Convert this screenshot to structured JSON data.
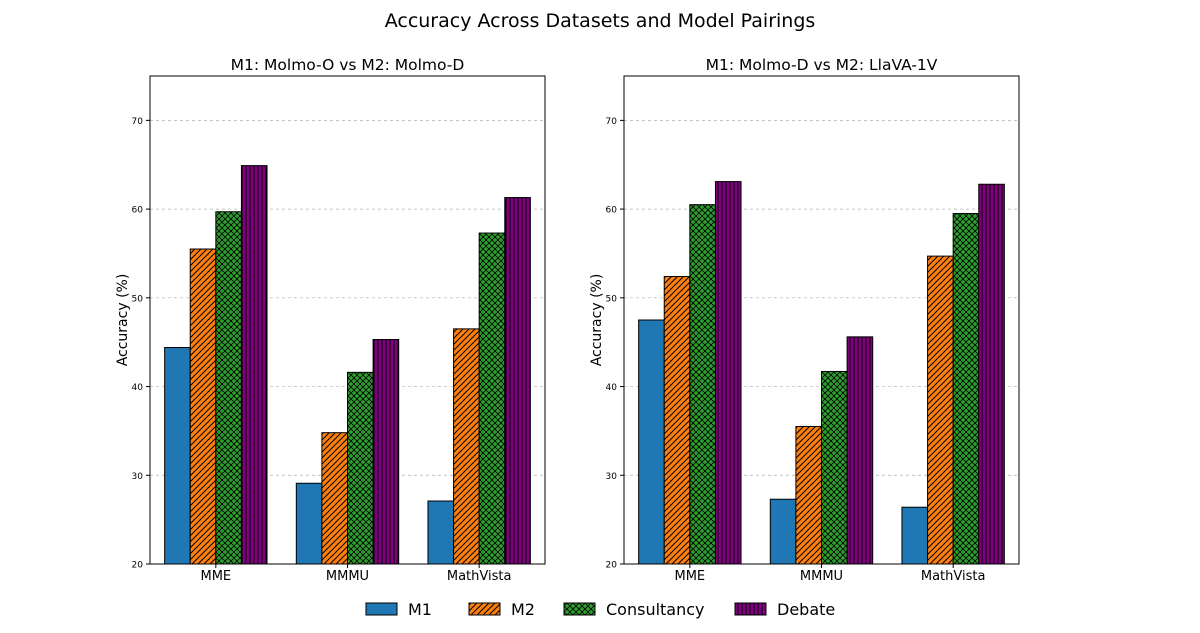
{
  "figure_title": "Accuracy Across Datasets and Model Pairings",
  "colors": {
    "M1": "#1f77b4",
    "M2": "#ff7f0e",
    "Consultancy": "#2ca02c",
    "Debate": "#800080"
  },
  "chart_data": [
    {
      "type": "bar",
      "title": "M1: Molmo-O vs M2: Molmo-D",
      "xlabel": "",
      "ylabel": "Accuracy (%)",
      "ylim": [
        20,
        75
      ],
      "yticks": [
        20,
        30,
        40,
        50,
        60,
        70
      ],
      "grid": "y-dashed",
      "categories": [
        "MME",
        "MMMU",
        "MathVista"
      ],
      "series": [
        {
          "name": "M1",
          "values": [
            44.4,
            29.1,
            27.1
          ]
        },
        {
          "name": "M2",
          "values": [
            55.5,
            34.8,
            46.5
          ]
        },
        {
          "name": "Consultancy",
          "values": [
            59.7,
            41.6,
            57.3
          ]
        },
        {
          "name": "Debate",
          "values": [
            64.9,
            45.3,
            61.3
          ]
        }
      ]
    },
    {
      "type": "bar",
      "title": "M1: Molmo-D vs M2: LlaVA-1V",
      "xlabel": "",
      "ylabel": "Accuracy (%)",
      "ylim": [
        20,
        75
      ],
      "yticks": [
        20,
        30,
        40,
        50,
        60,
        70
      ],
      "grid": "y-dashed",
      "categories": [
        "MME",
        "MMMU",
        "MathVista"
      ],
      "series": [
        {
          "name": "M1",
          "values": [
            47.5,
            27.3,
            26.4
          ]
        },
        {
          "name": "M2",
          "values": [
            52.4,
            35.5,
            54.7
          ]
        },
        {
          "name": "Consultancy",
          "values": [
            60.5,
            41.7,
            59.5
          ]
        },
        {
          "name": "Debate",
          "values": [
            63.1,
            45.6,
            62.8
          ]
        }
      ]
    }
  ],
  "legend": {
    "placement": "bottom-center",
    "entries": [
      "M1",
      "M2",
      "Consultancy",
      "Debate"
    ]
  }
}
